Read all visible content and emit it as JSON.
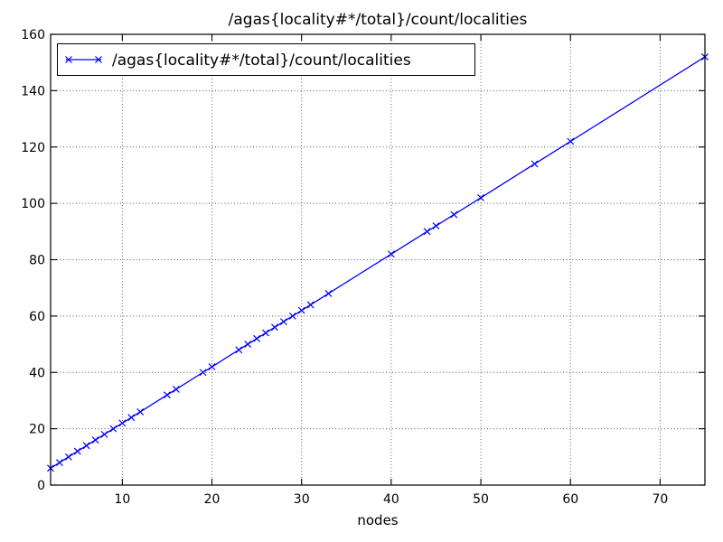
{
  "figure": {
    "background": "#ffffff",
    "frame_color": "#000000",
    "grid_color": "#555555",
    "text_color": "#000000"
  },
  "chart_data": {
    "type": "line",
    "title": "/agas{locality#*/total}/count/localities",
    "xlabel": "nodes",
    "ylabel": "",
    "xlim": [
      2,
      75
    ],
    "ylim": [
      0,
      160
    ],
    "xticks": [
      10,
      20,
      30,
      40,
      50,
      60,
      70
    ],
    "yticks": [
      0,
      20,
      40,
      60,
      80,
      100,
      120,
      140,
      160
    ],
    "grid": true,
    "grid_style": "dotted",
    "legend_position": "upper left",
    "series": [
      {
        "name": "/agas{locality#*/total}/count/localities",
        "color": "#0000ff",
        "marker": "x",
        "x": [
          2,
          3,
          4,
          5,
          6,
          7,
          8,
          9,
          10,
          11,
          12,
          15,
          16,
          19,
          20,
          23,
          24,
          25,
          26,
          27,
          28,
          29,
          30,
          31,
          33,
          40,
          44,
          45,
          47,
          50,
          56,
          60,
          75
        ],
        "y": [
          6,
          8,
          10,
          12,
          14,
          16,
          18,
          20,
          22,
          24,
          26,
          32,
          34,
          40,
          42,
          48,
          50,
          52,
          54,
          56,
          58,
          60,
          62,
          64,
          68,
          82,
          90,
          92,
          96,
          102,
          114,
          122,
          152
        ]
      }
    ]
  }
}
